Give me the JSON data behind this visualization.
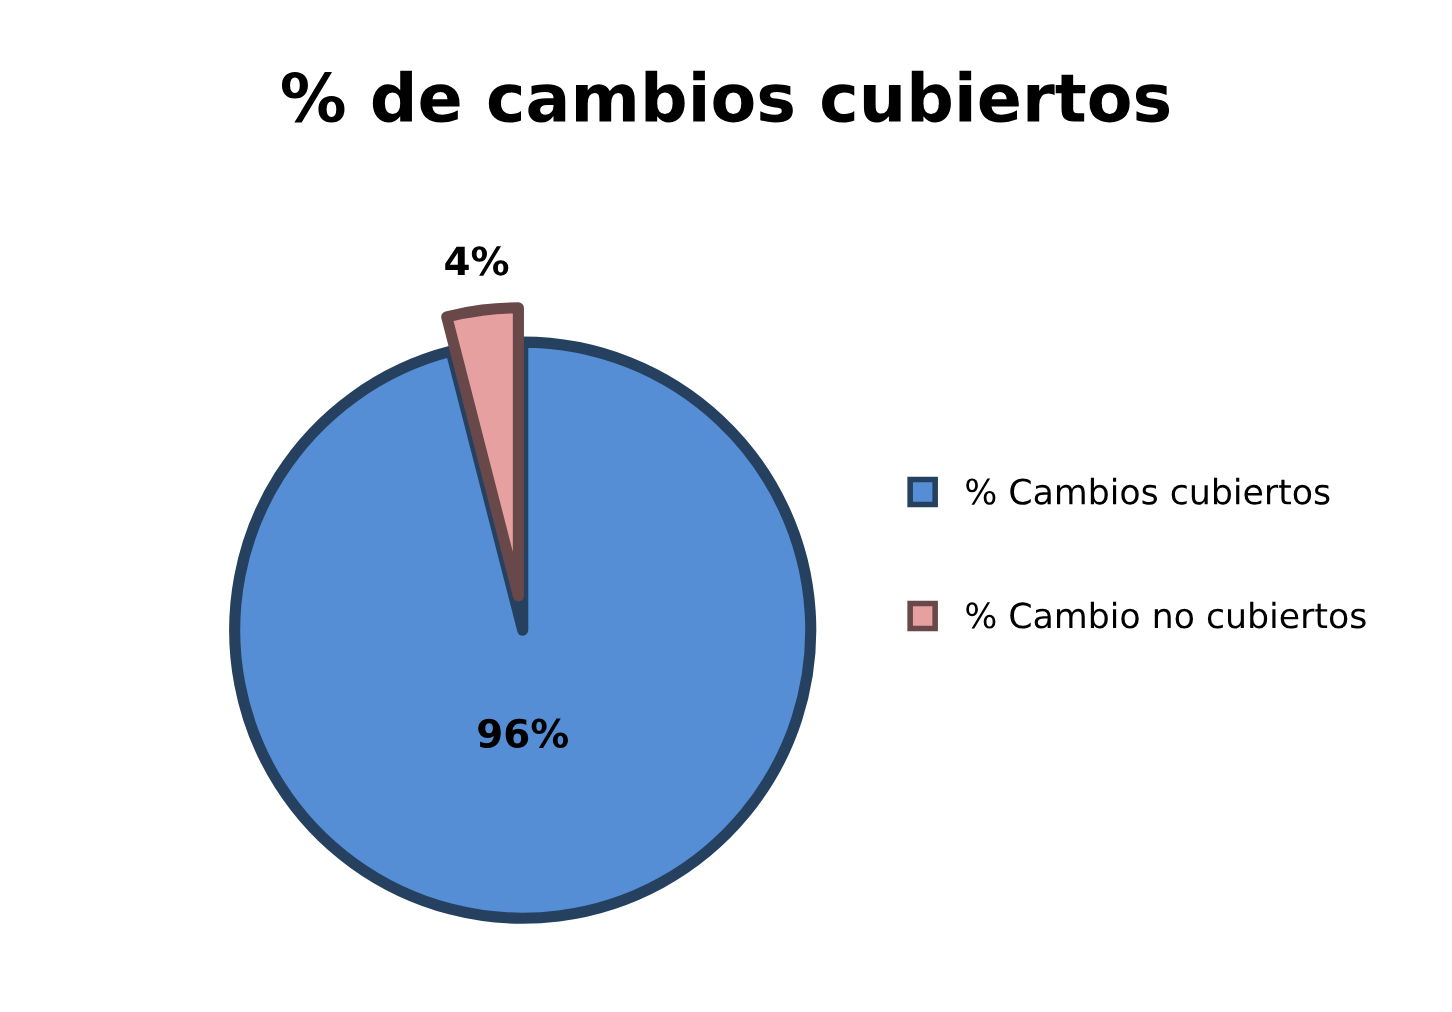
{
  "chart_data": {
    "type": "pie",
    "title": "% de cambios cubiertos",
    "categories": [
      "% Cambios cubiertos",
      "% Cambio no cubiertos"
    ],
    "values": [
      96,
      4
    ],
    "value_labels": [
      "96%",
      "4%"
    ],
    "colors": [
      "#558ed5",
      "#e6a0a0"
    ],
    "legend": "right"
  }
}
